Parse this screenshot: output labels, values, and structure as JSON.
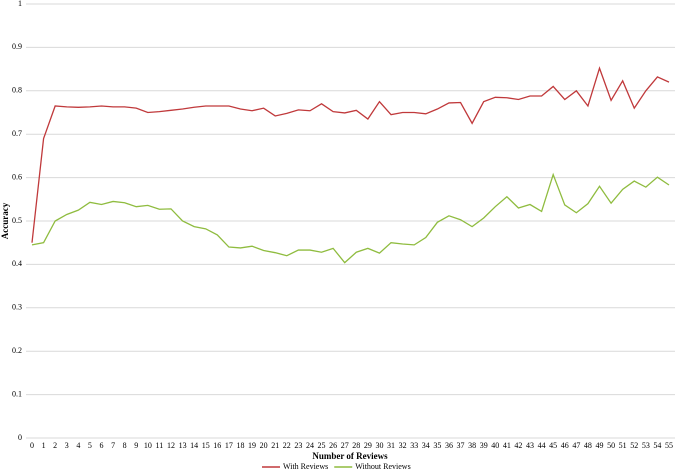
{
  "chart_data": {
    "type": "line",
    "x_label": "Number of Reviews",
    "y_label": "Accuracy",
    "categories": [
      0,
      1,
      2,
      3,
      4,
      5,
      6,
      7,
      8,
      9,
      10,
      11,
      12,
      13,
      14,
      15,
      16,
      17,
      18,
      19,
      20,
      21,
      22,
      23,
      24,
      25,
      26,
      27,
      28,
      29,
      30,
      31,
      32,
      33,
      34,
      35,
      36,
      37,
      38,
      39,
      40,
      41,
      42,
      43,
      44,
      45,
      46,
      47,
      48,
      49,
      50,
      51,
      52,
      53,
      54,
      55
    ],
    "series": [
      {
        "name": "With Reviews",
        "color": "#c0393b",
        "values": [
          0.45,
          0.69,
          0.765,
          0.763,
          0.762,
          0.763,
          0.765,
          0.763,
          0.763,
          0.76,
          0.75,
          0.752,
          0.755,
          0.758,
          0.762,
          0.765,
          0.765,
          0.765,
          0.758,
          0.754,
          0.76,
          0.742,
          0.748,
          0.756,
          0.754,
          0.77,
          0.752,
          0.749,
          0.755,
          0.735,
          0.775,
          0.745,
          0.75,
          0.75,
          0.747,
          0.758,
          0.772,
          0.773,
          0.725,
          0.775,
          0.785,
          0.784,
          0.78,
          0.788,
          0.788,
          0.81,
          0.78,
          0.8,
          0.765,
          0.852,
          0.778,
          0.823,
          0.76,
          0.8,
          0.832,
          0.82
        ]
      },
      {
        "name": "Without Reviews",
        "color": "#8fbc3f",
        "values": [
          0.445,
          0.45,
          0.5,
          0.515,
          0.525,
          0.543,
          0.538,
          0.545,
          0.542,
          0.533,
          0.536,
          0.527,
          0.528,
          0.5,
          0.487,
          0.482,
          0.468,
          0.44,
          0.438,
          0.442,
          0.432,
          0.427,
          0.42,
          0.433,
          0.433,
          0.428,
          0.437,
          0.404,
          0.428,
          0.437,
          0.426,
          0.45,
          0.447,
          0.445,
          0.462,
          0.497,
          0.512,
          0.503,
          0.487,
          0.507,
          0.533,
          0.556,
          0.53,
          0.538,
          0.522,
          0.607,
          0.537,
          0.519,
          0.54,
          0.58,
          0.541,
          0.573,
          0.592,
          0.578,
          0.601,
          0.583
        ]
      }
    ],
    "ylim": [
      0,
      1
    ],
    "yticks": [
      0,
      0.1,
      0.2,
      0.3,
      0.4,
      0.5,
      0.6,
      0.7,
      0.8,
      0.9,
      1
    ],
    "grid": true,
    "legend": "bottom"
  }
}
